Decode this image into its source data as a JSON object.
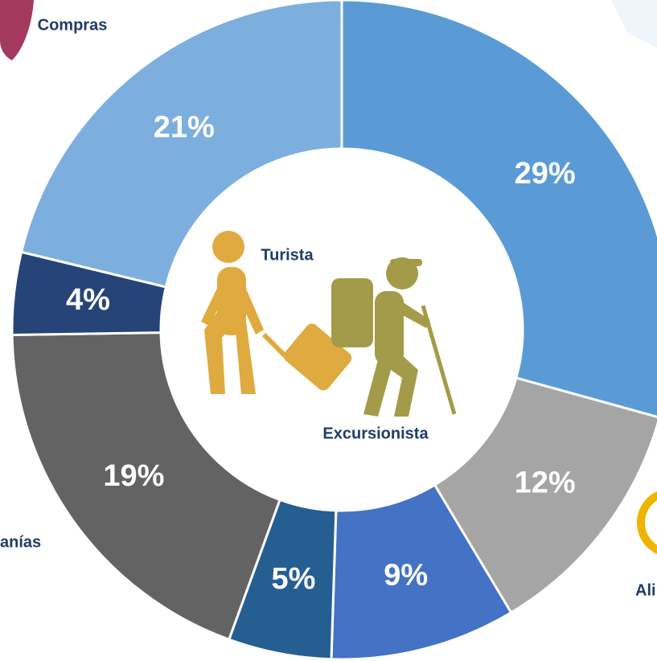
{
  "chart_data": {
    "type": "donut",
    "categories": [
      null,
      null,
      null,
      null,
      null,
      null,
      null
    ],
    "values": [
      29,
      12,
      9,
      5,
      19,
      4,
      21
    ],
    "value_labels": [
      "29%",
      "12%",
      "9%",
      "5%",
      "19%",
      "4%",
      "21%"
    ],
    "colors": [
      "#5b9bd5",
      "#a5a5a5",
      "#4472c4",
      "#255e91",
      "#636363",
      "#264478",
      "#7cafdd"
    ],
    "annotations": [
      "Compras",
      "Turista",
      "Excursionista",
      "anías",
      "Ali"
    ]
  }
}
